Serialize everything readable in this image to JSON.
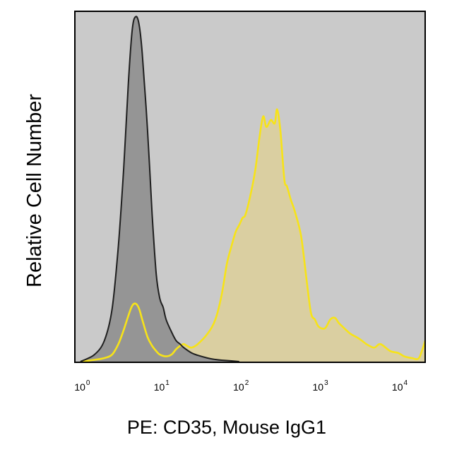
{
  "chart_data": {
    "type": "area",
    "x_scale": "log",
    "xlim": [
      0.85,
      22000
    ],
    "ylim": [
      0,
      1.0
    ],
    "grid": false,
    "legend": "none",
    "xlabel": "PE: CD35, Mouse IgG1",
    "ylabel": "Relative Cell Number",
    "x_ticks": [
      {
        "base": "10",
        "exp": "0",
        "value": 1
      },
      {
        "base": "10",
        "exp": "1",
        "value": 10
      },
      {
        "base": "10",
        "exp": "2",
        "value": 100
      },
      {
        "base": "10",
        "exp": "3",
        "value": 1000
      },
      {
        "base": "10",
        "exp": "4",
        "value": 10000
      }
    ],
    "colors": {
      "plot_background": "#cacaca",
      "isotype_fill": "#959595",
      "isotype_line": "#1e1e1e",
      "stained_fill": "#ddd09a",
      "stained_line": "#f7e318"
    },
    "series": [
      {
        "x": [
          1.0,
          1.5,
          2.0,
          2.5,
          3.0,
          3.5,
          4.0,
          4.5,
          5.0,
          5.5,
          6.0,
          7.0,
          8.0,
          9.0,
          10,
          11,
          12,
          14,
          16,
          18,
          20,
          25,
          30,
          40,
          50,
          60,
          80,
          100
        ],
        "y": [
          0.0,
          0.02,
          0.06,
          0.15,
          0.33,
          0.55,
          0.79,
          0.95,
          0.985,
          0.96,
          0.88,
          0.66,
          0.42,
          0.25,
          0.18,
          0.155,
          0.12,
          0.085,
          0.06,
          0.05,
          0.04,
          0.025,
          0.018,
          0.01,
          0.006,
          0.004,
          0.002,
          0.0
        ]
      },
      {
        "x": [
          1.0,
          1.5,
          2.0,
          2.5,
          3.0,
          3.5,
          4.0,
          4.5,
          5.0,
          5.5,
          6.0,
          7.0,
          8.0,
          9.0,
          10,
          12,
          14,
          16,
          18,
          20,
          22,
          25,
          30,
          40,
          50,
          60,
          70,
          80,
          90,
          100,
          110,
          120,
          140,
          160,
          180,
          200,
          220,
          250,
          280,
          300,
          330,
          370,
          400,
          450,
          500,
          600,
          700,
          800,
          900,
          1000,
          1200,
          1400,
          1600,
          1800,
          2000,
          2500,
          3000,
          3500,
          4000,
          5000,
          6000,
          8000,
          10000,
          12000,
          15000,
          18000,
          20000,
          22000
        ],
        "y": [
          0.0,
          0.005,
          0.01,
          0.02,
          0.05,
          0.09,
          0.13,
          0.16,
          0.165,
          0.15,
          0.12,
          0.07,
          0.045,
          0.03,
          0.02,
          0.015,
          0.02,
          0.035,
          0.045,
          0.05,
          0.045,
          0.04,
          0.05,
          0.08,
          0.12,
          0.19,
          0.28,
          0.33,
          0.37,
          0.39,
          0.41,
          0.42,
          0.48,
          0.55,
          0.64,
          0.7,
          0.67,
          0.69,
          0.68,
          0.72,
          0.66,
          0.52,
          0.5,
          0.46,
          0.43,
          0.36,
          0.24,
          0.14,
          0.12,
          0.1,
          0.095,
          0.12,
          0.125,
          0.11,
          0.1,
          0.08,
          0.07,
          0.06,
          0.05,
          0.04,
          0.05,
          0.03,
          0.025,
          0.015,
          0.01,
          0.008,
          0.03,
          0.06
        ]
      }
    ]
  }
}
